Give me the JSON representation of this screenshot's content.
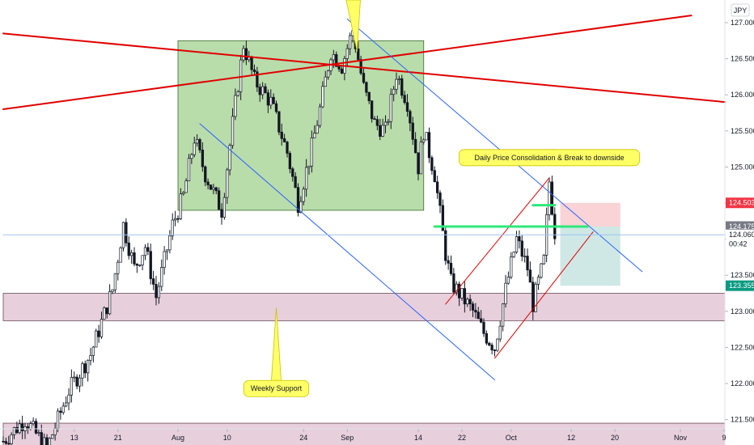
{
  "chart_data": {
    "type": "candlestick",
    "currency_label": "JPY",
    "ylim": [
      121.0,
      127.2
    ],
    "y_ticks": [
      127.0,
      126.5,
      126.0,
      125.5,
      125.0,
      124.5,
      124.0,
      123.5,
      123.0,
      122.5,
      122.0,
      121.5
    ],
    "y_tick_labels": [
      "127.000",
      "126.500",
      "126.000",
      "125.500",
      "125.000",
      "124.500",
      "124.000",
      "123.500",
      "123.000",
      "122.500",
      "122.000",
      "121.500"
    ],
    "x_tick_labels": [
      {
        "label": "13",
        "day": 13
      },
      {
        "label": "21",
        "day": 21
      },
      {
        "label": "Aug",
        "day": 32
      },
      {
        "label": "10",
        "day": 41
      },
      {
        "label": "24",
        "day": 55
      },
      {
        "label": "Sep",
        "day": 63
      },
      {
        "label": "14",
        "day": 76
      },
      {
        "label": "22",
        "day": 84
      },
      {
        "label": "Oct",
        "day": 93
      },
      {
        "label": "12",
        "day": 104
      },
      {
        "label": "20",
        "day": 112
      },
      {
        "label": "Nov",
        "day": 124
      },
      {
        "label": "9",
        "day": 132
      }
    ],
    "candle_path": [
      [
        0,
        121.2
      ],
      [
        4,
        121.5
      ],
      [
        8,
        121.1
      ],
      [
        12,
        121.9
      ],
      [
        16,
        122.4
      ],
      [
        20,
        123.3
      ],
      [
        22,
        124.2
      ],
      [
        24,
        123.6
      ],
      [
        26,
        123.9
      ],
      [
        28,
        123.2
      ],
      [
        31,
        124.2
      ],
      [
        33,
        124.6
      ],
      [
        35,
        125.4
      ],
      [
        37,
        124.9
      ],
      [
        40,
        124.4
      ],
      [
        42,
        125.6
      ],
      [
        44,
        126.7
      ],
      [
        46,
        126.2
      ],
      [
        49,
        125.9
      ],
      [
        52,
        125.2
      ],
      [
        54,
        124.5
      ],
      [
        56,
        125.1
      ],
      [
        58,
        125.8
      ],
      [
        60,
        126.6
      ],
      [
        62,
        126.4
      ],
      [
        64,
        126.9
      ],
      [
        66,
        126.1
      ],
      [
        68,
        125.6
      ],
      [
        70,
        125.5
      ],
      [
        72,
        126.3
      ],
      [
        74,
        125.9
      ],
      [
        76,
        125.0
      ],
      [
        77,
        125.5
      ],
      [
        79,
        124.9
      ],
      [
        81,
        123.8
      ],
      [
        82,
        123.4
      ],
      [
        84,
        123.2
      ],
      [
        86,
        123.0
      ],
      [
        88,
        122.7
      ],
      [
        90,
        122.5
      ],
      [
        92,
        123.3
      ],
      [
        94,
        124.0
      ],
      [
        96,
        123.6
      ],
      [
        97,
        123.1
      ],
      [
        99,
        123.7
      ],
      [
        100,
        124.8
      ],
      [
        101,
        124.1
      ]
    ],
    "price_tags": [
      {
        "label": "124.503",
        "value": 124.503,
        "color": "#f23645"
      },
      {
        "label": "124.175",
        "value": 124.175,
        "color": "#787b86"
      },
      {
        "label": "124.060",
        "value": 124.06,
        "color": "#ffffff"
      },
      {
        "label": "00:42",
        "value": 123.935,
        "color": "#ffffff"
      },
      {
        "label": "123.355",
        "value": 123.355,
        "color": "#089981"
      }
    ],
    "zones": [
      {
        "name": "consolidation-range",
        "x0": 32,
        "x1": 77,
        "y0": 124.4,
        "y1": 126.75,
        "fill": "#b9dcab",
        "stroke": "#3b6b2a"
      },
      {
        "name": "weekly-support-upper",
        "x0": 0,
        "x1": 140,
        "y0": 122.87,
        "y1": 123.25,
        "fill": "#e7cfdc",
        "stroke": "#6a4a5a"
      },
      {
        "name": "weekly-support-lower",
        "x0": 0,
        "x1": 140,
        "y0": 121.1,
        "y1": 121.45,
        "fill": "#e7cfdc",
        "stroke": "#6a4a5a"
      },
      {
        "name": "stop-loss-zone",
        "x0": 102,
        "x1": 113,
        "y0": 124.175,
        "y1": 124.503,
        "fill": "#f9d3d6",
        "stroke": ""
      },
      {
        "name": "take-profit-zone",
        "x0": 102,
        "x1": 113,
        "y0": 123.355,
        "y1": 124.175,
        "fill": "#cfe8e6",
        "stroke": ""
      }
    ],
    "trendlines": [
      {
        "name": "red-descending-trendline",
        "x0": 0,
        "y0": 126.85,
        "x1": 140,
        "y1": 125.9,
        "color": "#e00000",
        "width": 2
      },
      {
        "name": "red-ascending-trendline",
        "x0": 0,
        "y0": 125.8,
        "x1": 126,
        "y1": 127.1,
        "color": "#e00000",
        "width": 2
      },
      {
        "name": "blue-channel-upper",
        "x0": 63,
        "y0": 127.05,
        "x1": 117,
        "y1": 123.55,
        "color": "#2962ff",
        "width": 1
      },
      {
        "name": "blue-channel-lower",
        "x0": 36,
        "y0": 125.6,
        "x1": 90,
        "y1": 122.05,
        "color": "#2962ff",
        "width": 1
      },
      {
        "name": "red-channel-upper",
        "x0": 81,
        "y0": 123.1,
        "x1": 100,
        "y1": 124.85,
        "color": "#e00000",
        "width": 1
      },
      {
        "name": "red-channel-lower",
        "x0": 90,
        "y0": 122.35,
        "x1": 108,
        "y1": 124.1,
        "color": "#e00000",
        "width": 1
      },
      {
        "name": "green-break-level",
        "x0": 79,
        "x1": 107,
        "y0": 124.175,
        "y1": 124.175,
        "color": "#2ee87a",
        "width": 3
      },
      {
        "name": "green-short-level",
        "x0": 97,
        "x1": 101,
        "y0": 124.47,
        "y1": 124.47,
        "color": "#2ee87a",
        "width": 3
      },
      {
        "name": "current-price-line",
        "x0": 0,
        "x1": 140,
        "y0": 124.06,
        "y1": 124.06,
        "color": "#9ec3f0",
        "width": 1
      }
    ],
    "annotations": [
      {
        "name": "consolidation-callout",
        "text": "Daily Price Consolidation & Break to downside",
        "x": 100,
        "y": 125.13
      },
      {
        "name": "weekly-support-callout",
        "text": "Weekly Support",
        "x": 50,
        "y": 121.93
      }
    ]
  }
}
